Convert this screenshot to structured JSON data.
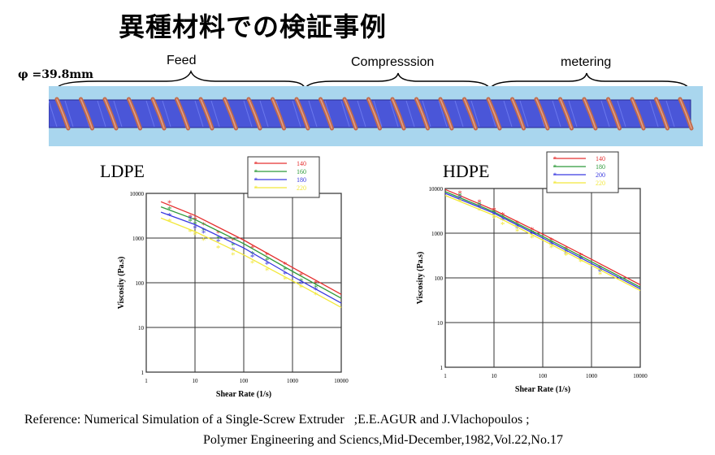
{
  "title": "異種材料での検証事例",
  "diameter_label": "φ =39.8mm",
  "zones": [
    "Feed",
    "Compresssion",
    "metering"
  ],
  "reference": {
    "line1": "Reference: Numerical Simulation of a Single-Screw Extruder   ;E.E.AGUR and J.Vlachopoulos ;",
    "line2": "Polymer Engineering and Sciencs,Mid-December,1982,Vol.22,No.17"
  },
  "colors": {
    "t140": "#e53030",
    "t160": "#2e9a3a",
    "t180": "#2e9a3a",
    "t200": "#3a3ae0",
    "t220": "#f2e83a",
    "t180_ldpe": "#3a3ae0"
  },
  "chart_data": [
    {
      "type": "line",
      "title": "LDPE",
      "xlabel": "Shear Rate (1/s)",
      "ylabel": "Viscosity (Pa.s)",
      "xscale": "log",
      "yscale": "log",
      "xlim": [
        1,
        10000
      ],
      "ylim": [
        1,
        10000
      ],
      "xticks": [
        "1",
        "10",
        "100",
        "1000",
        "10000"
      ],
      "yticks": [
        "1",
        "10",
        "100",
        "1000",
        "10000"
      ],
      "grid": true,
      "legend_position": "top-center",
      "series": [
        {
          "name": "140",
          "color": "#e53030",
          "line": {
            "x": [
              2,
              10,
              100,
              1000,
              10000
            ],
            "y": [
              6500,
              3200,
              900,
              220,
              55
            ]
          },
          "points": {
            "x": [
              3,
              8,
              10,
              15,
              30,
              60,
              150,
              300,
              700,
              1500,
              3000
            ],
            "y": [
              6200,
              3000,
              2600,
              2000,
              1300,
              900,
              600,
              420,
              260,
              150,
              100
            ]
          }
        },
        {
          "name": "160",
          "color": "#2e9a3a",
          "line": {
            "x": [
              2,
              10,
              100,
              1000,
              10000
            ],
            "y": [
              5000,
              2600,
              750,
              180,
              45
            ]
          },
          "points": {
            "x": [
              3,
              8,
              10,
              15,
              30,
              60,
              150,
              300,
              700,
              1500,
              3000
            ],
            "y": [
              4500,
              2400,
              2100,
              1500,
              1000,
              700,
              450,
              320,
              200,
              110,
              80
            ]
          }
        },
        {
          "name": "180",
          "color": "#3a3ae0",
          "line": {
            "x": [
              2,
              10,
              100,
              1000,
              10000
            ],
            "y": [
              3800,
              2000,
              600,
              140,
              35
            ]
          },
          "points": {
            "x": [
              3,
              8,
              10,
              15,
              30,
              60,
              150,
              300,
              700,
              1500,
              3000
            ],
            "y": [
              3200,
              2800,
              1700,
              1300,
              850,
              550,
              380,
              260,
              160,
              95,
              70
            ]
          }
        },
        {
          "name": "220",
          "color": "#f2e83a",
          "line": {
            "x": [
              2,
              10,
              100,
              1000,
              10000
            ],
            "y": [
              2800,
              1400,
              420,
              110,
              28
            ]
          },
          "points": {
            "x": [
              3,
              8,
              10,
              15,
              30,
              60,
              150,
              300,
              700,
              1500,
              3000
            ],
            "y": [
              2400,
              1400,
              1200,
              900,
              600,
              420,
              280,
              190,
              120,
              80,
              55
            ]
          }
        }
      ]
    },
    {
      "type": "line",
      "title": "HDPE",
      "xlabel": "Shear Rate (1/s)",
      "ylabel": "Viscosity (Pa.s)",
      "xscale": "log",
      "yscale": "log",
      "xlim": [
        1,
        10000
      ],
      "ylim": [
        1,
        10000
      ],
      "xticks": [
        "1",
        "10",
        "100",
        "1000",
        "10000"
      ],
      "yticks": [
        "1",
        "10",
        "100",
        "1000",
        "10000"
      ],
      "grid": true,
      "legend_position": "top-center",
      "series": [
        {
          "name": "140",
          "color": "#e53030",
          "line": {
            "x": [
              1,
              10,
              100,
              1000,
              10000
            ],
            "y": [
              9500,
              3300,
              950,
              260,
              70
            ]
          },
          "points": {
            "x": [
              2,
              5,
              10,
              15,
              30,
              60,
              150,
              300,
              600,
              1500
            ],
            "y": [
              8000,
              5000,
              3400,
              2600,
              1700,
              1200,
              700,
              450,
              320,
              170
            ]
          }
        },
        {
          "name": "180",
          "color": "#2e9a3a",
          "line": {
            "x": [
              1,
              10,
              100,
              1000,
              10000
            ],
            "y": [
              8500,
              3000,
              850,
              230,
              62
            ]
          },
          "points": {
            "x": [
              2,
              5,
              10,
              15,
              30,
              60,
              150,
              300,
              600,
              1500
            ],
            "y": [
              7000,
              4400,
              3000,
              2300,
              1500,
              1050,
              620,
              400,
              280,
              150
            ]
          }
        },
        {
          "name": "200",
          "color": "#3a3ae0",
          "line": {
            "x": [
              1,
              10,
              100,
              1000,
              10000
            ],
            "y": [
              7800,
              2800,
              780,
              210,
              57
            ]
          },
          "points": {
            "x": [
              2,
              5,
              10,
              15,
              30,
              60,
              150,
              300,
              600,
              1500
            ],
            "y": [
              6200,
              3900,
              2700,
              2000,
              1300,
              950,
              560,
              360,
              260,
              140
            ]
          }
        },
        {
          "name": "220",
          "color": "#f2e83a",
          "line": {
            "x": [
              1,
              10,
              100,
              1000,
              10000
            ],
            "y": [
              7000,
              2500,
              700,
              190,
              52
            ]
          },
          "points": {
            "x": [
              2,
              5,
              10,
              15,
              30,
              60,
              150,
              300,
              600,
              1500
            ],
            "y": [
              5200,
              3300,
              2200,
              1600,
              1100,
              800,
              480,
              320,
              230,
              120
            ]
          }
        }
      ]
    }
  ]
}
